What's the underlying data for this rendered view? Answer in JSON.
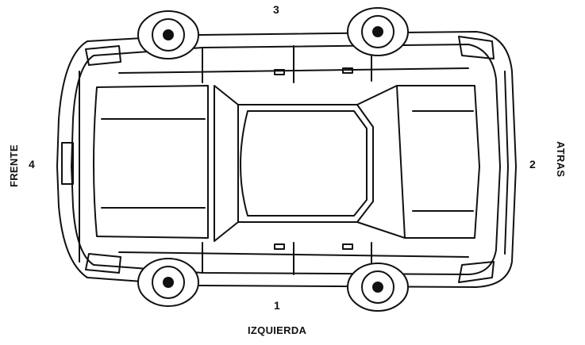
{
  "labels": {
    "side_top": "3",
    "side_bottom": "1",
    "side_left": "4",
    "side_right": "2",
    "bottom_word": "IZQUIERDA",
    "left_word": "FRENTE",
    "right_word": "ATRAS"
  },
  "colors": {
    "line": "#111111",
    "background": "#ffffff"
  }
}
